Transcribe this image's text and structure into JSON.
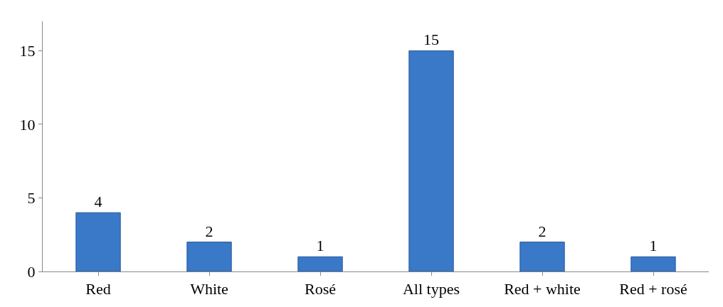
{
  "chart_data": {
    "type": "bar",
    "categories": [
      "Red",
      "White",
      "Rosé",
      "All types",
      "Red + white",
      "Red + rosé"
    ],
    "values": [
      4,
      2,
      1,
      15,
      2,
      1
    ],
    "color": "#3a78c8",
    "ylim": [
      0,
      17
    ],
    "yticks": [
      0,
      5,
      10,
      15
    ],
    "data_labels": true
  }
}
